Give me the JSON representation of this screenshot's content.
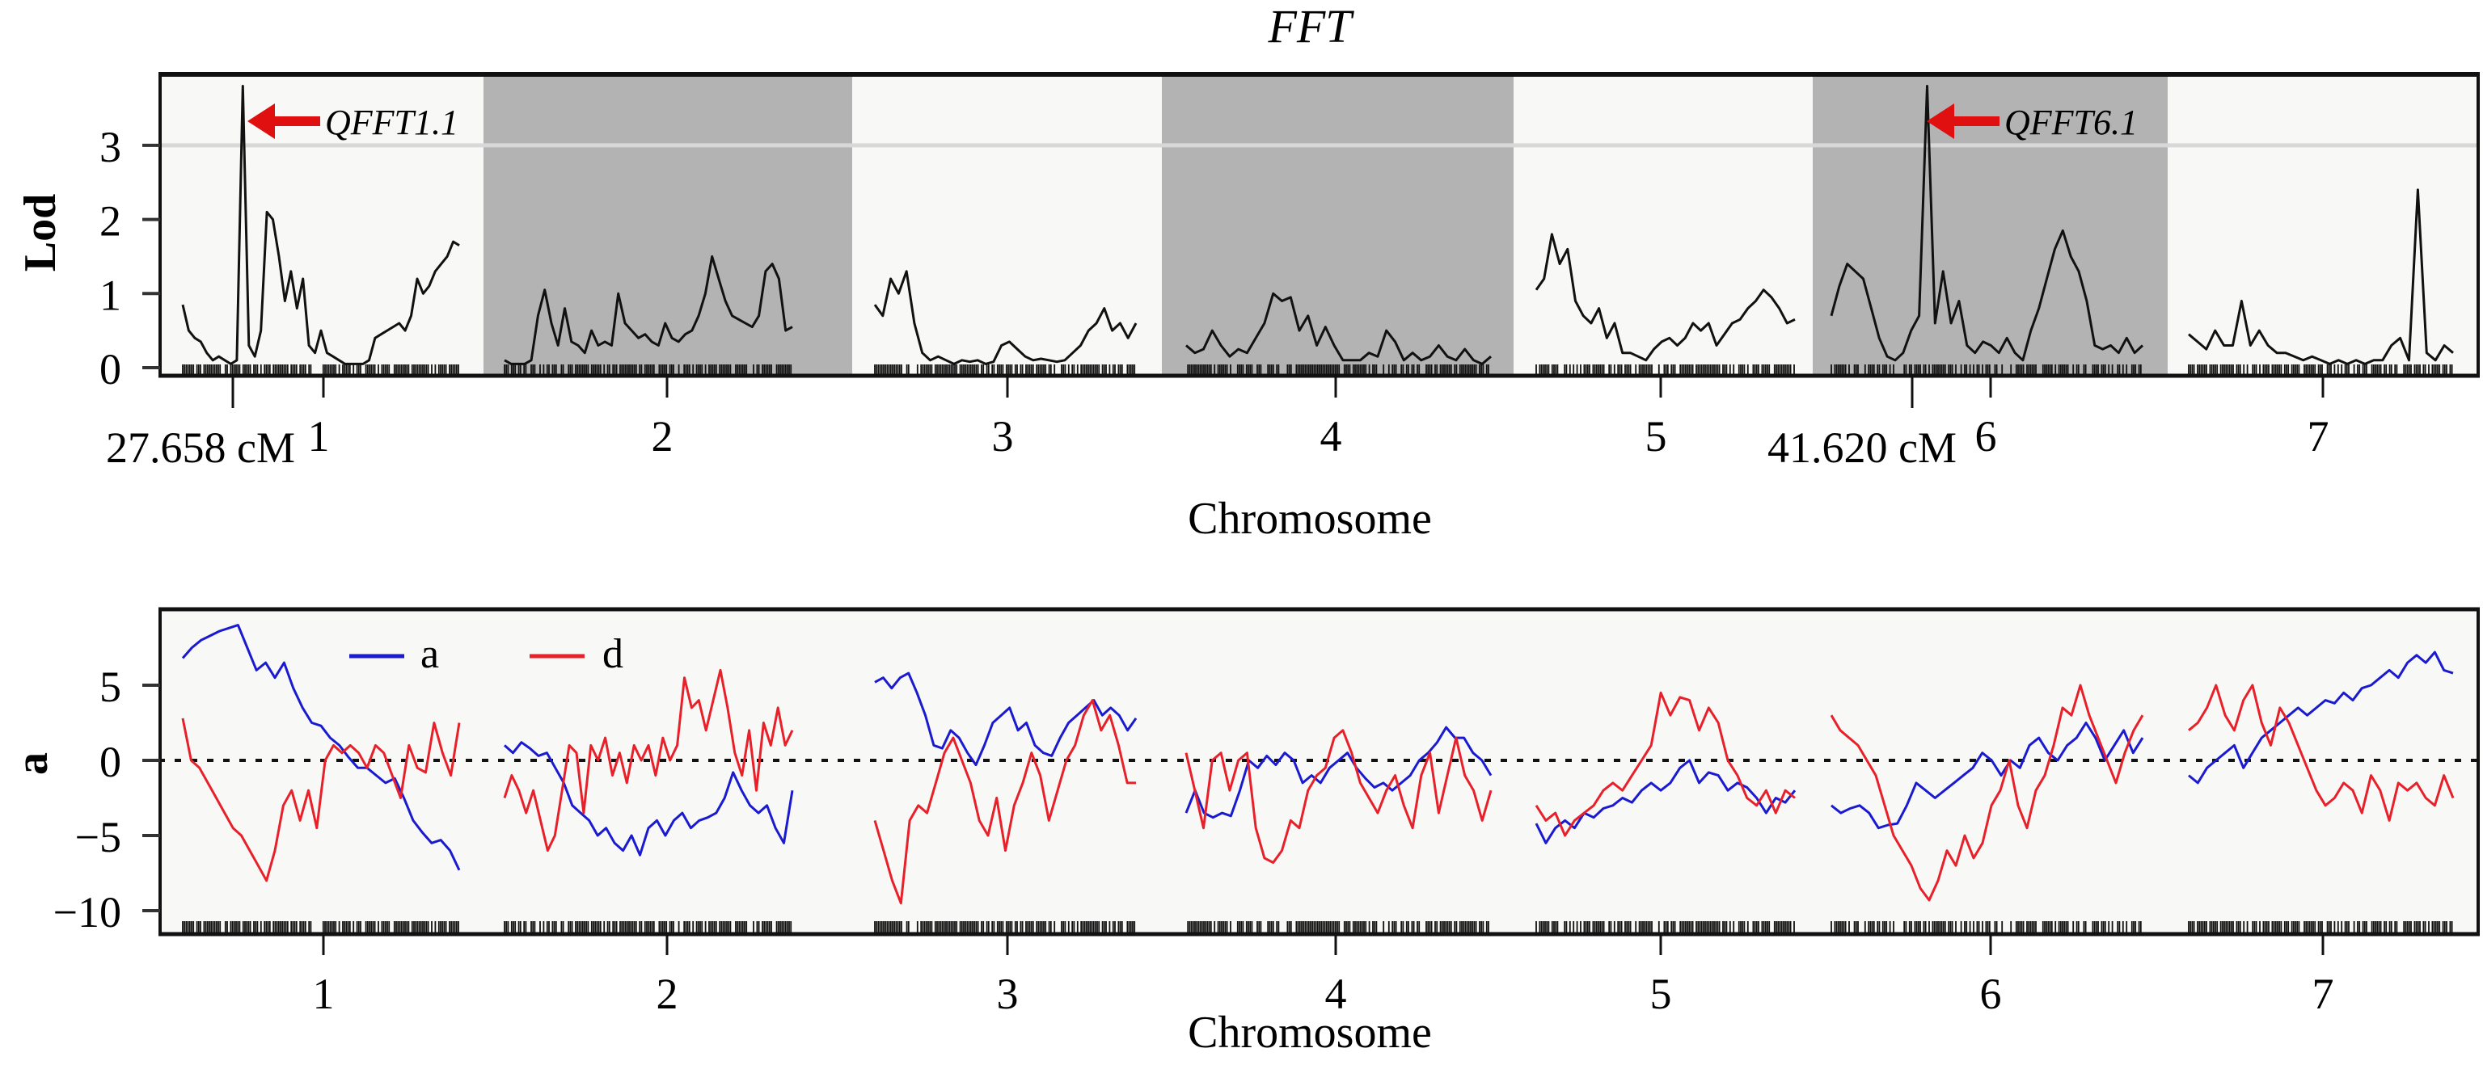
{
  "chart_data": [
    {
      "type": "line",
      "panel": "top",
      "title": "FFT",
      "xlabel": "Chromosome",
      "ylabel": "Lod",
      "ylim": [
        0,
        4
      ],
      "yticks": [
        0,
        1,
        2,
        3
      ],
      "threshold": 3,
      "categories": [
        "1",
        "2",
        "3",
        "4",
        "5",
        "6",
        "7"
      ],
      "shaded_chromosomes": [
        "2",
        "4",
        "6"
      ],
      "annotations": [
        {
          "label": "QFFT1.1",
          "chromosome": "1",
          "position_label": "27.658 cM",
          "lod": 3.8,
          "pos": 0.18
        },
        {
          "label": "QFFT6.1",
          "chromosome": "6",
          "position_label": "41.620 cM",
          "lod": 3.8,
          "pos": 0.24
        }
      ],
      "series": [
        {
          "name": "LOD",
          "chromosome": "1",
          "values": [
            0.85,
            0.5,
            0.4,
            0.35,
            0.2,
            0.1,
            0.15,
            0.1,
            0.05,
            0.1,
            3.8,
            0.3,
            0.15,
            0.5,
            2.1,
            2.0,
            1.5,
            0.9,
            1.3,
            0.8,
            1.2,
            0.3,
            0.2,
            0.5,
            0.2,
            0.15,
            0.1,
            0.05,
            0.05,
            0.05,
            0.05,
            0.1,
            0.4,
            0.45,
            0.5,
            0.55,
            0.6,
            0.5,
            0.7,
            1.2,
            1.0,
            1.1,
            1.3,
            1.4,
            1.5,
            1.7,
            1.65
          ]
        },
        {
          "name": "LOD",
          "chromosome": "2",
          "values": [
            0.1,
            0.05,
            0.05,
            0.05,
            0.1,
            0.7,
            1.05,
            0.6,
            0.3,
            0.8,
            0.35,
            0.3,
            0.2,
            0.5,
            0.3,
            0.35,
            0.3,
            1.0,
            0.6,
            0.5,
            0.4,
            0.45,
            0.35,
            0.3,
            0.6,
            0.4,
            0.35,
            0.45,
            0.5,
            0.7,
            1.0,
            1.5,
            1.2,
            0.9,
            0.7,
            0.65,
            0.6,
            0.55,
            0.7,
            1.3,
            1.4,
            1.2,
            0.5,
            0.55
          ]
        },
        {
          "name": "LOD",
          "chromosome": "3",
          "values": [
            0.85,
            0.7,
            1.2,
            1.0,
            1.3,
            0.6,
            0.2,
            0.1,
            0.15,
            0.1,
            0.05,
            0.1,
            0.08,
            0.1,
            0.05,
            0.08,
            0.3,
            0.35,
            0.25,
            0.15,
            0.1,
            0.12,
            0.1,
            0.08,
            0.1,
            0.2,
            0.3,
            0.5,
            0.6,
            0.8,
            0.5,
            0.6,
            0.4,
            0.6
          ]
        },
        {
          "name": "LOD",
          "chromosome": "4",
          "values": [
            0.3,
            0.2,
            0.25,
            0.5,
            0.3,
            0.15,
            0.25,
            0.2,
            0.4,
            0.6,
            1.0,
            0.9,
            0.95,
            0.5,
            0.7,
            0.3,
            0.55,
            0.3,
            0.1,
            0.1,
            0.1,
            0.2,
            0.15,
            0.5,
            0.35,
            0.1,
            0.2,
            0.1,
            0.15,
            0.3,
            0.15,
            0.1,
            0.25,
            0.1,
            0.05,
            0.15
          ]
        },
        {
          "name": "LOD",
          "chromosome": "5",
          "values": [
            1.05,
            1.2,
            1.8,
            1.4,
            1.6,
            0.9,
            0.7,
            0.6,
            0.8,
            0.4,
            0.6,
            0.2,
            0.2,
            0.15,
            0.1,
            0.25,
            0.35,
            0.4,
            0.3,
            0.4,
            0.6,
            0.5,
            0.6,
            0.3,
            0.45,
            0.6,
            0.65,
            0.8,
            0.9,
            1.05,
            0.95,
            0.8,
            0.6,
            0.65
          ]
        },
        {
          "name": "LOD",
          "chromosome": "6",
          "values": [
            0.7,
            1.1,
            1.4,
            1.3,
            1.2,
            0.8,
            0.4,
            0.15,
            0.1,
            0.2,
            0.5,
            0.7,
            3.8,
            0.6,
            1.3,
            0.6,
            0.9,
            0.3,
            0.2,
            0.35,
            0.3,
            0.2,
            0.4,
            0.2,
            0.1,
            0.5,
            0.8,
            1.2,
            1.6,
            1.85,
            1.5,
            1.3,
            0.9,
            0.3,
            0.25,
            0.3,
            0.2,
            0.4,
            0.2,
            0.3
          ]
        },
        {
          "name": "LOD",
          "chromosome": "7",
          "values": [
            0.45,
            0.35,
            0.25,
            0.5,
            0.3,
            0.3,
            0.9,
            0.3,
            0.5,
            0.3,
            0.2,
            0.2,
            0.15,
            0.1,
            0.15,
            0.1,
            0.05,
            0.1,
            0.05,
            0.1,
            0.05,
            0.1,
            0.1,
            0.3,
            0.4,
            0.1,
            2.4,
            0.2,
            0.1,
            0.3,
            0.2
          ]
        }
      ]
    },
    {
      "type": "line",
      "panel": "bottom",
      "title": "",
      "xlabel": "Chromosome",
      "ylabel": "a",
      "ylim": [
        -10,
        9
      ],
      "yticks": [
        -10,
        -5,
        0,
        5
      ],
      "reference_line": 0,
      "categories": [
        "1",
        "2",
        "3",
        "4",
        "5",
        "6",
        "7"
      ],
      "legend": [
        {
          "name": "a",
          "color": "#1a1ad0"
        },
        {
          "name": "d",
          "color": "#e8202a"
        }
      ],
      "legend_position": "top-left",
      "series": [
        {
          "name": "a",
          "chromosome": "1",
          "values": [
            6.8,
            7.5,
            8.0,
            8.3,
            8.6,
            8.8,
            9.0,
            7.5,
            6.0,
            6.5,
            5.5,
            6.5,
            4.8,
            3.5,
            2.5,
            2.3,
            1.5,
            1.0,
            0.2,
            -0.5,
            -0.5,
            -1.0,
            -1.5,
            -1.2,
            -2.5,
            -4.0,
            -4.8,
            -5.5,
            -5.3,
            -6.0,
            -7.3
          ]
        },
        {
          "name": "a",
          "chromosome": "2",
          "values": [
            1.0,
            0.5,
            1.2,
            0.8,
            0.3,
            0.5,
            -0.5,
            -1.5,
            -3.0,
            -3.5,
            -4.0,
            -5.0,
            -4.5,
            -5.5,
            -6.0,
            -5.0,
            -6.3,
            -4.5,
            -4.0,
            -5.0,
            -4.0,
            -3.5,
            -4.5,
            -4.0,
            -3.8,
            -3.5,
            -2.5,
            -0.8,
            -2.0,
            -3.0,
            -3.5,
            -3.0,
            -4.5,
            -5.5,
            -2.0
          ]
        },
        {
          "name": "a",
          "chromosome": "3",
          "values": [
            5.2,
            5.5,
            4.8,
            5.5,
            5.8,
            4.5,
            3.0,
            1.0,
            0.8,
            2.0,
            1.5,
            0.5,
            -0.3,
            1.0,
            2.5,
            3.0,
            3.5,
            2.0,
            2.5,
            1.0,
            0.5,
            0.3,
            1.5,
            2.5,
            3.0,
            3.5,
            4.0,
            3.0,
            3.5,
            3.0,
            2.0,
            2.8
          ]
        },
        {
          "name": "a",
          "chromosome": "4",
          "values": [
            -3.5,
            -2.0,
            -3.5,
            -3.8,
            -3.5,
            -3.7,
            -2.0,
            0.0,
            -0.5,
            0.3,
            -0.3,
            0.5,
            0.0,
            -1.5,
            -1.0,
            -1.5,
            -0.5,
            0.0,
            0.5,
            -0.5,
            -1.2,
            -1.8,
            -1.5,
            -2.0,
            -1.5,
            -1.0,
            0.0,
            0.5,
            1.2,
            2.2,
            1.5,
            1.5,
            0.5,
            0.0,
            -1.0
          ]
        },
        {
          "name": "a",
          "chromosome": "5",
          "values": [
            -4.2,
            -5.5,
            -4.5,
            -4.0,
            -4.5,
            -3.5,
            -3.8,
            -3.2,
            -3.0,
            -2.5,
            -2.8,
            -2.0,
            -1.5,
            -2.0,
            -1.5,
            -0.5,
            0.0,
            -1.5,
            -0.8,
            -1.0,
            -2.0,
            -1.5,
            -1.8,
            -2.5,
            -3.5,
            -2.5,
            -2.8,
            -2.0
          ]
        },
        {
          "name": "a",
          "chromosome": "6",
          "values": [
            -3.0,
            -3.5,
            -3.2,
            -3.0,
            -3.5,
            -4.5,
            -4.3,
            -4.2,
            -3.0,
            -1.5,
            -2.0,
            -2.5,
            -2.0,
            -1.5,
            -1.0,
            -0.5,
            0.5,
            0.0,
            -1.0,
            0.0,
            -0.5,
            1.0,
            1.5,
            0.5,
            0.0,
            1.0,
            1.5,
            2.5,
            1.5,
            0.0,
            1.0,
            2.0,
            0.5,
            1.5
          ]
        },
        {
          "name": "a",
          "chromosome": "7",
          "values": [
            -1.0,
            -1.5,
            -0.5,
            0.0,
            0.5,
            1.0,
            -0.5,
            0.5,
            1.5,
            2.0,
            2.5,
            3.0,
            3.5,
            3.0,
            3.5,
            4.0,
            3.8,
            4.5,
            4.0,
            4.8,
            5.0,
            5.5,
            6.0,
            5.5,
            6.5,
            7.0,
            6.5,
            7.2,
            6.0,
            5.8
          ]
        },
        {
          "name": "d",
          "chromosome": "1",
          "values": [
            2.8,
            0.0,
            -0.5,
            -1.5,
            -2.5,
            -3.5,
            -4.5,
            -5.0,
            -6.0,
            -7.0,
            -8.0,
            -6.0,
            -3.0,
            -2.0,
            -4.0,
            -2.0,
            -4.5,
            0.0,
            1.0,
            0.5,
            1.0,
            0.5,
            -0.5,
            1.0,
            0.5,
            -1.0,
            -2.5,
            1.0,
            -0.5,
            -0.8,
            2.5,
            0.5,
            -1.0,
            2.5
          ]
        },
        {
          "name": "d",
          "chromosome": "2",
          "values": [
            -2.5,
            -1.0,
            -2.0,
            -3.5,
            -2.0,
            -4.0,
            -6.0,
            -5.0,
            -2.0,
            1.0,
            0.5,
            -3.5,
            1.0,
            0.0,
            1.5,
            -1.0,
            0.5,
            -1.5,
            1.0,
            0.0,
            1.0,
            -1.0,
            1.5,
            0.0,
            1.0,
            5.5,
            3.5,
            4.0,
            2.0,
            4.0,
            6.0,
            3.5,
            0.5,
            -1.0,
            2.0,
            -2.0,
            2.5,
            1.0,
            3.5,
            1.0,
            2.0
          ]
        },
        {
          "name": "d",
          "chromosome": "3",
          "values": [
            -4.0,
            -6.0,
            -8.0,
            -9.5,
            -4.0,
            -3.0,
            -3.5,
            -1.5,
            0.5,
            1.5,
            0.0,
            -1.5,
            -4.0,
            -5.0,
            -2.5,
            -6.0,
            -3.0,
            -1.5,
            0.5,
            -1.0,
            -4.0,
            -2.0,
            0.0,
            1.0,
            3.0,
            4.0,
            2.0,
            3.0,
            1.0,
            -1.5,
            -1.5
          ]
        },
        {
          "name": "d",
          "chromosome": "4",
          "values": [
            0.5,
            -2.0,
            -4.5,
            0.0,
            0.5,
            -2.0,
            0.0,
            0.5,
            -4.5,
            -6.5,
            -6.8,
            -6.0,
            -4.0,
            -4.5,
            -2.0,
            -1.0,
            -0.5,
            1.5,
            2.0,
            0.5,
            -1.5,
            -2.5,
            -3.5,
            -2.0,
            -1.0,
            -3.0,
            -4.5,
            -1.0,
            0.5,
            -3.5,
            -1.0,
            1.5,
            -1.0,
            -2.0,
            -4.0,
            -2.0
          ]
        },
        {
          "name": "d",
          "chromosome": "5",
          "values": [
            -3.0,
            -4.0,
            -3.5,
            -5.0,
            -4.0,
            -3.5,
            -3.0,
            -2.0,
            -1.5,
            -2.0,
            -1.0,
            0.0,
            1.0,
            4.5,
            3.0,
            4.2,
            4.0,
            2.0,
            3.5,
            2.5,
            0.0,
            -1.0,
            -2.5,
            -3.0,
            -2.0,
            -3.5,
            -2.0,
            -2.5
          ]
        },
        {
          "name": "d",
          "chromosome": "6",
          "values": [
            3.0,
            2.0,
            1.5,
            1.0,
            0.0,
            -1.0,
            -3.0,
            -5.0,
            -6.0,
            -7.0,
            -8.5,
            -9.3,
            -8.0,
            -6.0,
            -7.0,
            -5.0,
            -6.5,
            -5.5,
            -3.0,
            -2.0,
            0.0,
            -3.0,
            -4.5,
            -2.0,
            -1.0,
            1.0,
            3.5,
            3.0,
            5.0,
            3.0,
            1.5,
            0.0,
            -1.5,
            0.5,
            2.0,
            3.0
          ]
        },
        {
          "name": "d",
          "chromosome": "7",
          "values": [
            2.0,
            2.5,
            3.5,
            5.0,
            3.0,
            2.0,
            4.0,
            5.0,
            2.5,
            1.0,
            3.5,
            2.5,
            1.0,
            -0.5,
            -2.0,
            -3.0,
            -2.5,
            -1.5,
            -2.0,
            -3.5,
            -1.0,
            -2.0,
            -4.0,
            -1.5,
            -2.0,
            -1.5,
            -2.5,
            -3.0,
            -1.0,
            -2.5
          ]
        }
      ]
    }
  ],
  "figure": {
    "title": "FFT",
    "top_panel": {
      "ylabel": "Lod",
      "xlabel": "Chromosome",
      "yticks": [
        "0",
        "1",
        "2",
        "3"
      ],
      "xticks": [
        "1",
        "2",
        "3",
        "4",
        "5",
        "6",
        "7"
      ],
      "qtl_labels": [
        "QFFT1.1",
        "QFFT6.1"
      ],
      "position_labels": [
        "27.658 cM",
        "41.620 cM"
      ]
    },
    "bottom_panel": {
      "ylabel": "a",
      "xlabel": "Chromosome",
      "yticks": [
        "−10",
        "−5",
        "0",
        "5"
      ],
      "xticks": [
        "1",
        "2",
        "3",
        "4",
        "5",
        "6",
        "7"
      ],
      "legend": [
        "a",
        "d"
      ]
    },
    "colors": {
      "additive": "#1a1ad0",
      "dominance": "#e8202a",
      "arrow": "#e01010",
      "shade": "#b3b3b3",
      "threshold": "#d8d8d8"
    }
  }
}
